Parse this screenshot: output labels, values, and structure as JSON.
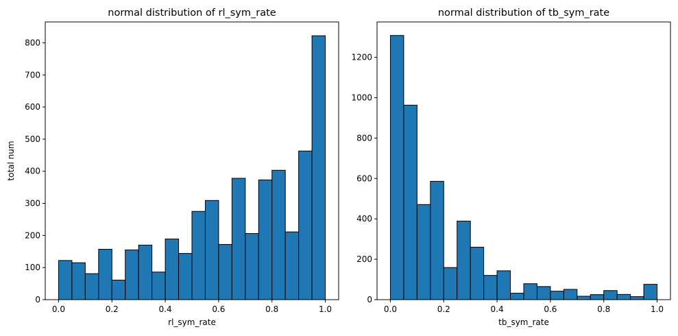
{
  "chart_data": [
    {
      "type": "bar",
      "title": "normal distribution of rl_sym_rate",
      "xlabel": "rl_sym_rate",
      "ylabel": "total num",
      "xlim": [
        -0.05,
        1.05
      ],
      "ylim": [
        0,
        865
      ],
      "xticks": [
        "0.0",
        "0.2",
        "0.4",
        "0.6",
        "0.8",
        "1.0"
      ],
      "xtick_values": [
        0,
        0.2,
        0.4,
        0.6,
        0.8,
        1.0
      ],
      "yticks": [
        "0",
        "100",
        "200",
        "300",
        "400",
        "500",
        "600",
        "700",
        "800"
      ],
      "ytick_values": [
        0,
        100,
        200,
        300,
        400,
        500,
        600,
        700,
        800
      ],
      "bin_edges": [
        0,
        0.05,
        0.1,
        0.15,
        0.2,
        0.25,
        0.3,
        0.35,
        0.4,
        0.45,
        0.5,
        0.55,
        0.6,
        0.65,
        0.7,
        0.75,
        0.8,
        0.85,
        0.9,
        0.95,
        1.0
      ],
      "values": [
        122,
        115,
        81,
        157,
        61,
        155,
        170,
        86,
        189,
        144,
        275,
        309,
        172,
        378,
        206,
        373,
        403,
        211,
        463,
        822
      ],
      "color": "#1f77b4",
      "edgecolor": "#000000",
      "grid": false
    },
    {
      "type": "bar",
      "title": "normal distribution of tb_sym_rate",
      "xlabel": "tb_sym_rate",
      "ylabel": "",
      "xlim": [
        -0.05,
        1.05
      ],
      "ylim": [
        0,
        1375
      ],
      "xticks": [
        "0.0",
        "0.2",
        "0.4",
        "0.6",
        "0.8",
        "1.0"
      ],
      "xtick_values": [
        0,
        0.2,
        0.4,
        0.6,
        0.8,
        1.0
      ],
      "yticks": [
        "0",
        "200",
        "400",
        "600",
        "800",
        "1000",
        "1200"
      ],
      "ytick_values": [
        0,
        200,
        400,
        600,
        800,
        1000,
        1200
      ],
      "bin_edges": [
        0,
        0.05,
        0.1,
        0.15,
        0.2,
        0.25,
        0.3,
        0.35,
        0.4,
        0.45,
        0.5,
        0.55,
        0.6,
        0.65,
        0.7,
        0.75,
        0.8,
        0.85,
        0.9,
        0.95,
        1.0
      ],
      "values": [
        1308,
        963,
        471,
        586,
        159,
        389,
        260,
        120,
        143,
        32,
        79,
        65,
        42,
        51,
        17,
        25,
        45,
        26,
        15,
        76
      ],
      "color": "#1f77b4",
      "edgecolor": "#000000",
      "grid": false
    }
  ]
}
